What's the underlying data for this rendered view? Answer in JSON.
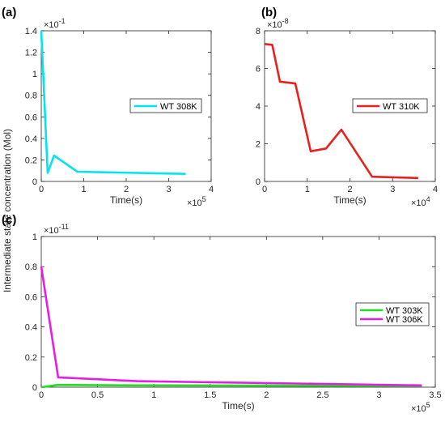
{
  "shared_ylabel": "Intermediate state concentration (Mol)",
  "chart_data": [
    {
      "panel_label": "(a)",
      "type": "line",
      "xlabel": "Time(s)",
      "x_multiplier": {
        "base": "×10",
        "exp": "5"
      },
      "y_multiplier": {
        "base": "×10",
        "exp": "-1"
      },
      "xlim": [
        0,
        4
      ],
      "ylim": [
        0,
        1.4
      ],
      "x_ticks": [
        0,
        1,
        2,
        3,
        4
      ],
      "y_ticks": [
        0,
        0.2,
        0.4,
        0.6,
        0.8,
        1,
        1.2,
        1.4
      ],
      "x_tick_labels": [
        "0",
        "1",
        "2",
        "3",
        "4"
      ],
      "y_tick_labels": [
        "0",
        "0.2",
        "0.4",
        "0.6",
        "0.8",
        "1",
        "1.2",
        "1.4"
      ],
      "legend_position": "right",
      "series": [
        {
          "name": "WT 308K",
          "color": "#00e5ee",
          "x": [
            0,
            0.15,
            0.3,
            0.85,
            3.4
          ],
          "y": [
            1.4,
            0.08,
            0.24,
            0.09,
            0.07
          ]
        }
      ]
    },
    {
      "panel_label": "(b)",
      "type": "line",
      "xlabel": "Time(s)",
      "x_multiplier": {
        "base": "×10",
        "exp": "4"
      },
      "y_multiplier": {
        "base": "×10",
        "exp": "-8"
      },
      "xlim": [
        0,
        4
      ],
      "ylim": [
        0,
        8
      ],
      "x_ticks": [
        0,
        1,
        2,
        3,
        4
      ],
      "y_ticks": [
        0,
        2,
        4,
        6,
        8
      ],
      "x_tick_labels": [
        "0",
        "1",
        "2",
        "3",
        "4"
      ],
      "y_tick_labels": [
        "0",
        "2",
        "4",
        "6",
        "8"
      ],
      "legend_position": "right",
      "series": [
        {
          "name": "WT 310K",
          "color": "#e8211e",
          "x": [
            0,
            0.18,
            0.36,
            0.72,
            1.08,
            1.44,
            1.8,
            2.52,
            3.6
          ],
          "y": [
            7.3,
            7.25,
            5.3,
            5.2,
            1.6,
            1.75,
            2.75,
            0.25,
            0.18
          ]
        }
      ]
    },
    {
      "panel_label": "(c)",
      "type": "line",
      "xlabel": "Time(s)",
      "x_multiplier": {
        "base": "×10",
        "exp": "5"
      },
      "y_multiplier": {
        "base": "×10",
        "exp": "-11"
      },
      "xlim": [
        0,
        3.5
      ],
      "ylim": [
        0,
        1
      ],
      "x_ticks": [
        0,
        0.5,
        1,
        1.5,
        2,
        2.5,
        3,
        3.5
      ],
      "y_ticks": [
        0,
        0.2,
        0.4,
        0.6,
        0.8,
        1
      ],
      "x_tick_labels": [
        "0",
        "0.5",
        "1",
        "1.5",
        "2",
        "2.5",
        "3",
        "3.5"
      ],
      "y_tick_labels": [
        "0",
        "0.2",
        "0.4",
        "0.6",
        "0.8",
        "1"
      ],
      "legend_position": "right",
      "series": [
        {
          "name": "WT 303K",
          "color": "#22dd22",
          "x": [
            0,
            0.15,
            0.85,
            3.38
          ],
          "y": [
            0.0,
            0.015,
            0.012,
            0.008
          ]
        },
        {
          "name": "WT 306K",
          "color": "#e51ee5",
          "x": [
            0,
            0.15,
            0.85,
            3.38
          ],
          "y": [
            0.8,
            0.065,
            0.04,
            0.012
          ]
        }
      ]
    }
  ]
}
